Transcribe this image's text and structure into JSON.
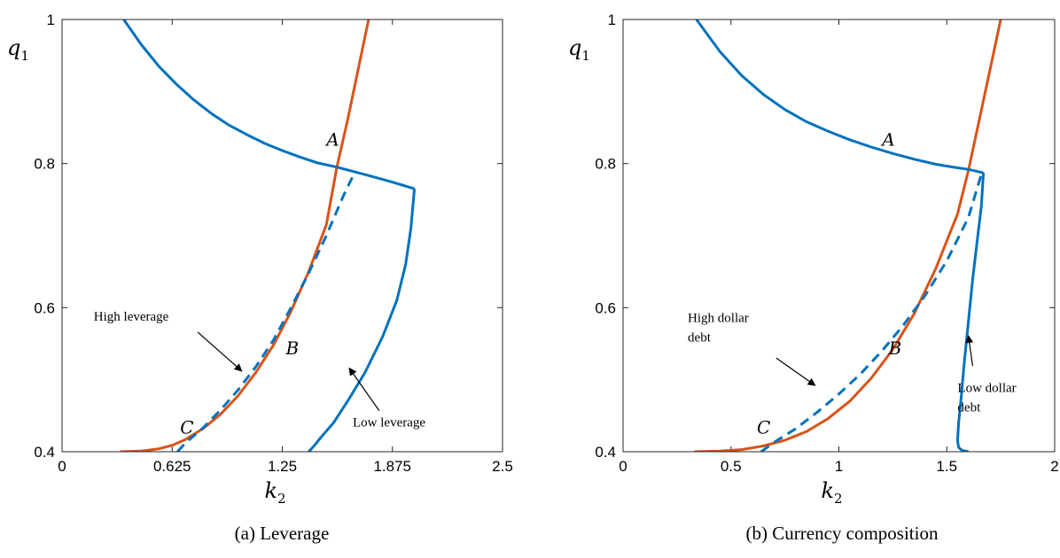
{
  "colors": {
    "blue": "#0072BD",
    "orange": "#D95319",
    "axis": "#262626"
  },
  "chart_data": [
    {
      "type": "line",
      "caption": "(a) Leverage",
      "xlabel": "k",
      "xlabel_sub": "2",
      "ylabel": "q",
      "ylabel_sub": "1",
      "xlim": [
        0,
        2.5
      ],
      "ylim": [
        0.4,
        1.0
      ],
      "xticks": [
        0,
        0.625,
        1.25,
        1.875,
        2.5
      ],
      "xtick_labels": [
        "0",
        "0.625",
        "1.25",
        "1.875",
        "2.5"
      ],
      "yticks": [
        0.4,
        0.6,
        0.8,
        1.0
      ],
      "ytick_labels": [
        "0.4",
        "0.6",
        "0.8",
        "1"
      ],
      "series": [
        {
          "color": "orange",
          "dash": false,
          "x": [
            0.33,
            0.45,
            0.55,
            0.625,
            0.7,
            0.8,
            0.9,
            1.0,
            1.1,
            1.2,
            1.3,
            1.4,
            1.5,
            1.56,
            1.62,
            1.68,
            1.74
          ],
          "y": [
            0.4,
            0.401,
            0.404,
            0.409,
            0.417,
            0.432,
            0.452,
            0.478,
            0.51,
            0.548,
            0.595,
            0.65,
            0.715,
            0.795,
            0.86,
            0.93,
            1.0
          ]
        },
        {
          "color": "blue",
          "dash": false,
          "x": [
            0.35,
            0.45,
            0.55,
            0.65,
            0.75,
            0.85,
            0.95,
            1.05,
            1.15,
            1.25,
            1.35,
            1.45,
            1.56,
            1.7,
            1.85,
            2.0
          ],
          "y": [
            1.0,
            0.965,
            0.935,
            0.91,
            0.888,
            0.869,
            0.853,
            0.84,
            0.828,
            0.818,
            0.809,
            0.801,
            0.795,
            0.786,
            0.776,
            0.765
          ]
        },
        {
          "color": "blue",
          "dash": false,
          "x": [
            2.0,
            1.98,
            1.95,
            1.9,
            1.82,
            1.72,
            1.62,
            1.54,
            1.47,
            1.43,
            1.4
          ],
          "y": [
            0.765,
            0.71,
            0.66,
            0.61,
            0.56,
            0.51,
            0.47,
            0.44,
            0.42,
            0.408,
            0.4
          ]
        },
        {
          "color": "blue",
          "dash": true,
          "x": [
            0.655,
            0.7,
            0.8,
            0.9,
            1.0,
            1.1,
            1.2,
            1.3,
            1.4,
            1.5,
            1.6,
            1.66
          ],
          "y": [
            0.4,
            0.412,
            0.433,
            0.458,
            0.486,
            0.518,
            0.555,
            0.6,
            0.648,
            0.7,
            0.757,
            0.787
          ]
        }
      ],
      "point_labels": [
        {
          "text": "A",
          "x": 1.5,
          "y": 0.825
        },
        {
          "text": "B",
          "x": 1.27,
          "y": 0.535
        },
        {
          "text": "C",
          "x": 0.67,
          "y": 0.425
        }
      ],
      "annotations": [
        {
          "lines": [
            "High leverage"
          ],
          "text_at": [
            0.18,
            0.582
          ],
          "arrow_from": [
            0.77,
            0.566
          ],
          "arrow_to": [
            1.02,
            0.512
          ]
        },
        {
          "lines": [
            "Low leverage"
          ],
          "text_at": [
            1.65,
            0.435
          ],
          "arrow_from": [
            1.8,
            0.457
          ],
          "arrow_to": [
            1.63,
            0.516
          ]
        }
      ]
    },
    {
      "type": "line",
      "caption": "(b) Currency composition",
      "xlabel": "k",
      "xlabel_sub": "2",
      "ylabel": "q",
      "ylabel_sub": "1",
      "xlim": [
        0,
        2
      ],
      "ylim": [
        0.4,
        1.0
      ],
      "xticks": [
        0,
        0.5,
        1,
        1.5,
        2
      ],
      "xtick_labels": [
        "0",
        "0.5",
        "1",
        "1.5",
        "2"
      ],
      "yticks": [
        0.4,
        0.6,
        0.8,
        1.0
      ],
      "ytick_labels": [
        "0.4",
        "0.6",
        "0.8",
        "1"
      ],
      "series": [
        {
          "color": "orange",
          "dash": false,
          "x": [
            0.33,
            0.45,
            0.55,
            0.65,
            0.75,
            0.85,
            0.95,
            1.05,
            1.15,
            1.25,
            1.35,
            1.45,
            1.55,
            1.6,
            1.65,
            1.7,
            1.75
          ],
          "y": [
            0.4,
            0.401,
            0.403,
            0.408,
            0.416,
            0.428,
            0.446,
            0.47,
            0.502,
            0.542,
            0.592,
            0.655,
            0.73,
            0.79,
            0.86,
            0.93,
            1.0
          ]
        },
        {
          "color": "blue",
          "dash": false,
          "x": [
            0.34,
            0.45,
            0.55,
            0.65,
            0.75,
            0.85,
            0.95,
            1.05,
            1.15,
            1.25,
            1.35,
            1.45,
            1.55,
            1.6,
            1.67
          ],
          "y": [
            1.0,
            0.955,
            0.922,
            0.896,
            0.875,
            0.858,
            0.845,
            0.833,
            0.823,
            0.814,
            0.806,
            0.799,
            0.794,
            0.792,
            0.787
          ]
        },
        {
          "color": "blue",
          "dash": false,
          "x": [
            1.67,
            1.66,
            1.64,
            1.62,
            1.6,
            1.58,
            1.565,
            1.555,
            1.55,
            1.555,
            1.57,
            1.6
          ],
          "y": [
            0.787,
            0.74,
            0.69,
            0.64,
            0.58,
            0.52,
            0.47,
            0.44,
            0.415,
            0.406,
            0.402,
            0.4
          ]
        },
        {
          "color": "blue",
          "dash": true,
          "x": [
            0.64,
            0.7,
            0.8,
            0.9,
            1.0,
            1.1,
            1.2,
            1.3,
            1.4,
            1.5,
            1.6,
            1.66
          ],
          "y": [
            0.4,
            0.413,
            0.432,
            0.455,
            0.48,
            0.508,
            0.54,
            0.576,
            0.617,
            0.665,
            0.725,
            0.785
          ]
        }
      ],
      "point_labels": [
        {
          "text": "A",
          "x": 1.2,
          "y": 0.825
        },
        {
          "text": "B",
          "x": 1.23,
          "y": 0.535
        },
        {
          "text": "C",
          "x": 0.62,
          "y": 0.425
        }
      ],
      "annotations": [
        {
          "lines": [
            "High dollar",
            "debt"
          ],
          "text_at": [
            0.3,
            0.58
          ],
          "arrow_from": [
            0.71,
            0.53
          ],
          "arrow_to": [
            0.89,
            0.492
          ]
        },
        {
          "lines": [
            "Low dollar",
            "debt"
          ],
          "text_at": [
            1.55,
            0.483
          ],
          "arrow_from": [
            1.62,
            0.519
          ],
          "arrow_to": [
            1.6,
            0.561
          ]
        }
      ]
    }
  ]
}
